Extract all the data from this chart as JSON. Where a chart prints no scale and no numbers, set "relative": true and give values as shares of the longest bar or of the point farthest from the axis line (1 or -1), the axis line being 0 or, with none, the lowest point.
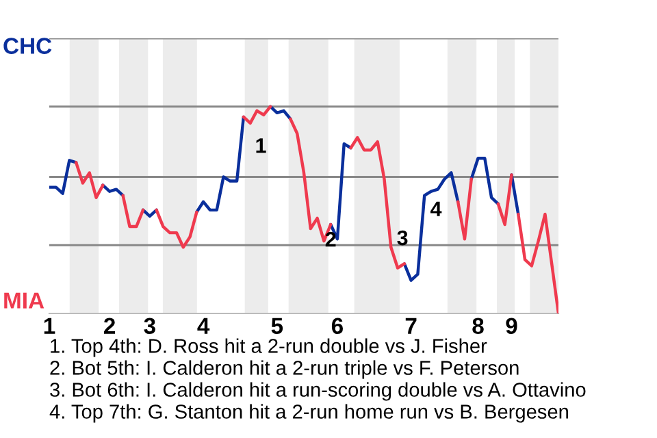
{
  "chart_data": {
    "type": "line",
    "relative": true,
    "categories": [
      "1",
      null,
      null,
      null,
      null,
      null,
      null,
      null,
      null,
      "2",
      null,
      null,
      null,
      null,
      null,
      "3",
      null,
      null,
      null,
      null,
      null,
      null,
      null,
      "4",
      null,
      null,
      null,
      null,
      null,
      null,
      null,
      null,
      null,
      null,
      "5",
      null,
      null,
      null,
      null,
      null,
      null,
      null,
      null,
      "6",
      null,
      null,
      null,
      null,
      null,
      null,
      null,
      null,
      null,
      null,
      "7",
      null,
      null,
      null,
      null,
      null,
      null,
      null,
      null,
      null,
      "8",
      null,
      null,
      null,
      null,
      "9",
      null,
      null,
      null,
      null,
      null,
      null,
      null
    ],
    "series": [
      {
        "color": "#0a2f9c",
        "values": [
          0.61,
          0.61,
          0.58,
          0.74,
          0.73,
          null,
          null,
          null,
          0.62,
          0.59,
          0.6,
          0.57,
          null,
          null,
          0.5,
          0.47,
          0.5,
          null,
          null,
          null,
          null,
          null,
          0.49,
          0.54,
          0.5,
          0.5,
          0.66,
          0.64,
          0.64,
          0.95,
          null,
          null,
          null,
          1,
          0.97,
          0.98,
          0.94,
          null,
          null,
          null,
          null,
          null,
          0.43,
          0.36,
          0.82,
          0.8,
          null,
          null,
          null,
          null,
          null,
          null,
          null,
          0.24,
          0.16,
          0.19,
          0.57,
          0.59,
          0.6,
          0.65,
          0.68,
          0.54,
          null,
          0.65,
          0.75,
          0.75,
          0.56,
          0.53,
          null,
          0.67,
          0.48,
          null,
          null,
          null,
          null,
          null,
          null
        ]
      },
      {
        "color": "#ef3a4e",
        "values": [
          null,
          null,
          null,
          null,
          0.73,
          0.63,
          0.68,
          0.56,
          0.62,
          null,
          null,
          0.57,
          0.42,
          0.42,
          0.5,
          null,
          0.5,
          0.42,
          0.39,
          0.39,
          0.32,
          0.37,
          0.49,
          null,
          null,
          null,
          null,
          null,
          null,
          0.95,
          0.92,
          0.98,
          0.96,
          1,
          null,
          null,
          0.94,
          0.87,
          0.68,
          0.41,
          0.46,
          0.35,
          0.43,
          null,
          null,
          0.8,
          0.85,
          0.79,
          0.79,
          0.83,
          0.65,
          0.32,
          0.22,
          0.24,
          null,
          null,
          null,
          null,
          null,
          null,
          null,
          0.54,
          0.36,
          0.65,
          null,
          null,
          null,
          0.53,
          0.43,
          0.67,
          null,
          null,
          null,
          null,
          null,
          null,
          null
        ]
      },
      {
        "color": "#ef3a4e",
        "values": [
          null,
          null,
          null,
          null,
          null,
          null,
          null,
          null,
          null,
          null,
          null,
          null,
          null,
          null,
          null,
          null,
          null,
          null,
          null,
          null,
          null,
          null,
          null,
          null,
          null,
          null,
          null,
          null,
          null,
          null,
          null,
          null,
          null,
          null,
          null,
          null,
          null,
          null,
          null,
          null,
          null,
          null,
          null,
          null,
          null,
          null,
          null,
          null,
          null,
          null,
          null,
          null,
          null,
          null,
          null,
          null,
          null,
          null,
          null,
          null,
          null,
          null,
          null,
          null,
          null,
          null,
          null,
          null,
          null,
          null,
          0.48,
          0.26,
          0.23,
          0.35,
          0.48,
          0.24,
          0
        ]
      }
    ],
    "ref_lines": [
      {
        "axis": "y",
        "value": 0.33,
        "color": "#888888"
      },
      {
        "axis": "y",
        "value": 0.66,
        "color": "#888888"
      },
      {
        "axis": "y",
        "value": 1.0,
        "color": "#888888"
      },
      {
        "axis": "y",
        "value": 1.33,
        "color": "#888888"
      }
    ],
    "annotations": [
      "CHC",
      "MIA",
      "1",
      "2",
      "3",
      "4",
      "1. Top 4th: D. Ross hit a 2-run double vs J. Fisher",
      "2. Bot 5th: I. Calderon hit a 2-run triple vs F. Peterson",
      "3. Bot 6th: I. Calderon hit a run-scoring double vs A. Ottavino",
      "4. Top 7th: G. Stanton hit a 2-run home run vs B. Bergesen"
    ]
  }
}
